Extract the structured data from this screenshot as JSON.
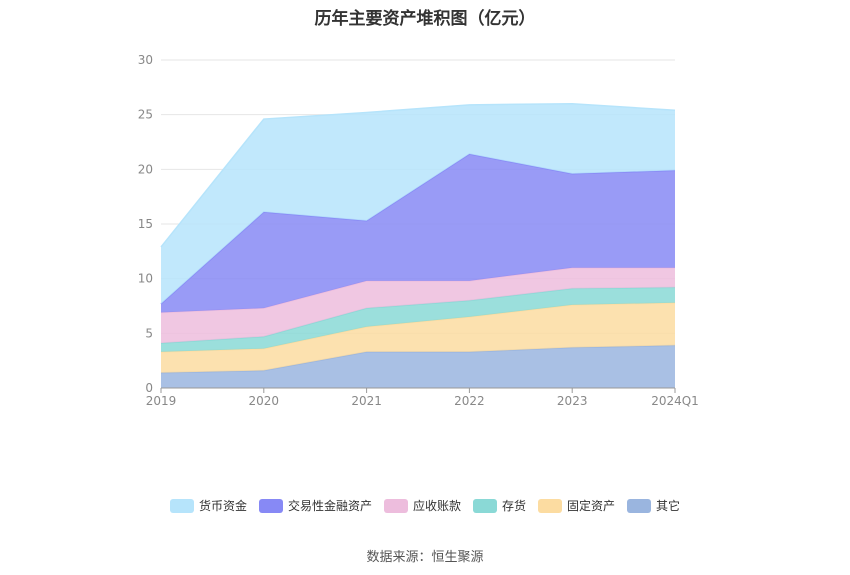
{
  "title": "历年主要资产堆积图（亿元）",
  "source": "数据来源：恒生聚源",
  "chart_data": {
    "type": "area",
    "stacked": true,
    "title": "历年主要资产堆积图（亿元）",
    "xlabel": "",
    "ylabel": "",
    "categories": [
      "2019",
      "2020",
      "2021",
      "2022",
      "2023",
      "2024Q1"
    ],
    "ylim": [
      0,
      30
    ],
    "yticks": [
      0,
      5,
      10,
      15,
      20,
      25,
      30
    ],
    "grid": true,
    "legend_position": "bottom",
    "series": [
      {
        "name": "其它",
        "color": "#9ab5df",
        "values": [
          1.4,
          1.6,
          3.3,
          3.3,
          3.7,
          3.9
        ]
      },
      {
        "name": "固定资产",
        "color": "#fcdca1",
        "values": [
          1.9,
          2.0,
          2.3,
          3.2,
          3.9,
          3.9
        ]
      },
      {
        "name": "存货",
        "color": "#8ad9d6",
        "values": [
          0.8,
          1.1,
          1.7,
          1.5,
          1.5,
          1.4
        ]
      },
      {
        "name": "应收账款",
        "color": "#edbddd",
        "values": [
          2.8,
          2.6,
          2.5,
          1.8,
          1.9,
          1.8
        ]
      },
      {
        "name": "交易性金融资产",
        "color": "#8789f5",
        "values": [
          0.8,
          8.8,
          5.5,
          11.6,
          8.6,
          8.9
        ]
      },
      {
        "name": "货币资金",
        "color": "#b6e4fb",
        "values": [
          5.2,
          8.5,
          9.9,
          4.5,
          6.4,
          5.5
        ]
      }
    ],
    "legend_order": [
      "货币资金",
      "交易性金融资产",
      "应收账款",
      "存货",
      "固定资产",
      "其它"
    ]
  }
}
